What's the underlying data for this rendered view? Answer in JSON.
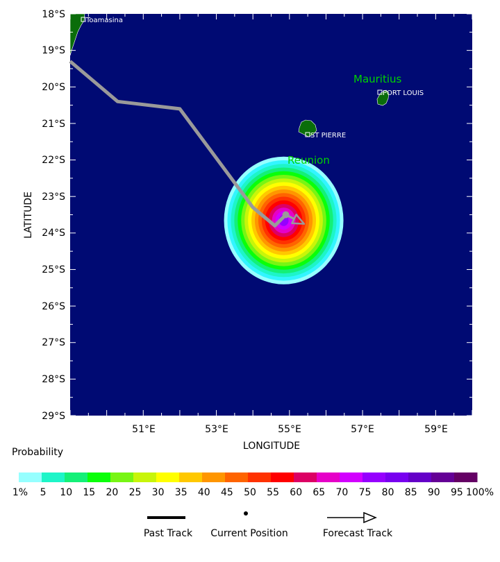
{
  "map": {
    "lat_labels": [
      "18°S",
      "19°S",
      "20°S",
      "21°S",
      "22°S",
      "23°S",
      "24°S",
      "25°S",
      "26°S",
      "27°S",
      "28°S",
      "29°S"
    ],
    "lon_labels": [
      "51°E",
      "53°E",
      "55°E",
      "57°E",
      "59°E"
    ],
    "ylabel": "LATITUDE",
    "xlabel": "LONGITUDE",
    "ocean_color": "#000a73",
    "land_color": "#0a6d0a",
    "places": {
      "toamasina": "Toamasina",
      "mauritius": "Mauritius",
      "port_louis": "PORT LOUIS",
      "st_pierre": "ST PIERRE",
      "reunion": "Reunion"
    },
    "past_track": [
      [
        49.0,
        19.3
      ],
      [
        50.3,
        20.4
      ],
      [
        52.0,
        20.6
      ],
      [
        54.0,
        23.3
      ],
      [
        54.6,
        23.8
      ],
      [
        54.9,
        23.5
      ]
    ],
    "current_position": [
      54.9,
      23.5
    ],
    "forecast_end": [
      55.4,
      23.75
    ]
  },
  "legend": {
    "title": "Probability",
    "labels": [
      "1%",
      "5",
      "10",
      "15",
      "20",
      "25",
      "30",
      "35",
      "40",
      "45",
      "50",
      "55",
      "60",
      "65",
      "70",
      "75",
      "80",
      "85",
      "90",
      "95",
      "100%"
    ],
    "colors": [
      "#96ffff",
      "#32f5ff",
      "#1ef5c8",
      "#14f078",
      "#0aff0a",
      "#78f514",
      "#c8f50a",
      "#ffff00",
      "#ffc800",
      "#ff9600",
      "#ff6400",
      "#ff3200",
      "#ff0000",
      "#dc0064",
      "#e600c8",
      "#d200ff",
      "#9600ff",
      "#7800f0",
      "#6400c8",
      "#640096",
      "#640064"
    ],
    "items": {
      "past_track": "Past Track",
      "current_position": "Current Position",
      "forecast_track": "Forecast Track"
    }
  }
}
